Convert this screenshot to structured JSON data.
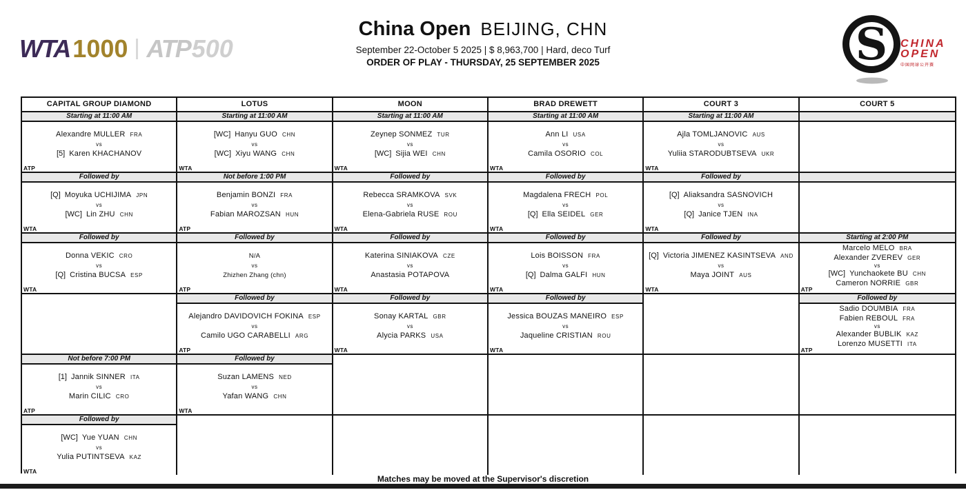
{
  "labels": {
    "vs": "vs"
  },
  "colors": {
    "wta_purple": "#3d2b57",
    "wta_gold": "#a2832c",
    "atp_gray": "#c6c6c6",
    "logo_red": "#c1272d",
    "band_gray": "#e8e8e8",
    "border_black": "#111111"
  },
  "header": {
    "wta_logo": {
      "word": "WTA",
      "number": "1000"
    },
    "atp_logo": {
      "word": "ATP",
      "number": "500"
    },
    "title": "China Open",
    "city": "BEIJING, CHN",
    "subtitle": "September 22-October 5 2025  |  $ 8,963,700  |  Hard, deco Turf",
    "order_line": "ORDER OF PLAY - THURSDAY, 25 SEPTEMBER 2025",
    "logo": {
      "line1": "CHINA",
      "line2": "OPEN",
      "chinese": "中国网球公开赛"
    }
  },
  "footer": {
    "note": "Matches may be moved at the Supervisor's discretion"
  },
  "schedule": {
    "courts": [
      {
        "name": "CAPITAL GROUP DIAMOND",
        "slots": [
          {
            "band": "Starting at 11:00 AM",
            "match": {
              "tour": "ATP",
              "rows": [
                {
                  "name": "Alexandre MULLER",
                  "cc": "FRA"
                },
                {
                  "vs": true
                },
                {
                  "pre": "[5]",
                  "name": "Karen KHACHANOV"
                }
              ]
            }
          },
          {
            "band": "Followed by",
            "match": {
              "tour": "WTA",
              "rows": [
                {
                  "pre": "[Q]",
                  "name": "Moyuka UCHIJIMA",
                  "cc": "JPN"
                },
                {
                  "vs": true
                },
                {
                  "pre": "[WC]",
                  "name": "Lin ZHU",
                  "cc": "CHN"
                }
              ]
            }
          },
          {
            "band": "Followed by",
            "match": {
              "tour": "WTA",
              "rows": [
                {
                  "name": "Donna VEKIC",
                  "cc": "CRO"
                },
                {
                  "vs": true
                },
                {
                  "pre": "[Q]",
                  "name": "Cristina BUCSA",
                  "cc": "ESP"
                }
              ]
            }
          },
          {
            "band": null,
            "match": null
          },
          {
            "band": "Not before 7:00 PM",
            "match": {
              "tour": "ATP",
              "rows": [
                {
                  "pre": "[1]",
                  "name": "Jannik SINNER",
                  "cc": "ITA"
                },
                {
                  "vs": true
                },
                {
                  "name": "Marin CILIC",
                  "cc": "CRO"
                }
              ]
            }
          },
          {
            "band": "Followed by",
            "match": {
              "tour": "WTA",
              "rows": [
                {
                  "pre": "[WC]",
                  "name": "Yue YUAN",
                  "cc": "CHN"
                },
                {
                  "vs": true
                },
                {
                  "name": "Yulia PUTINTSEVA",
                  "cc": "KAZ"
                }
              ]
            }
          }
        ]
      },
      {
        "name": "LOTUS",
        "slots": [
          {
            "band": "Starting at 11:00 AM",
            "match": {
              "tour": "WTA",
              "rows": [
                {
                  "pre": "[WC]",
                  "name": "Hanyu GUO",
                  "cc": "CHN"
                },
                {
                  "vs": true
                },
                {
                  "pre": "[WC]",
                  "name": "Xiyu WANG",
                  "cc": "CHN"
                }
              ]
            }
          },
          {
            "band": "Not before 1:00 PM",
            "match": {
              "tour": "ATP",
              "rows": [
                {
                  "name": "Benjamin BONZI",
                  "cc": "FRA"
                },
                {
                  "vs": true
                },
                {
                  "name": "Fabian MAROZSAN",
                  "cc": "HUN"
                }
              ]
            }
          },
          {
            "band": "Followed by",
            "match": {
              "tour": "ATP",
              "style": "plain",
              "rows": [
                {
                  "name": "N/A"
                },
                {
                  "vs": true
                },
                {
                  "name": "Zhizhen Zhang (chn)"
                }
              ]
            }
          },
          {
            "band": "Followed by",
            "match": {
              "tour": "ATP",
              "rows": [
                {
                  "name": "Alejandro DAVIDOVICH FOKINA",
                  "cc": "ESP"
                },
                {
                  "vs": true
                },
                {
                  "name": "Camilo UGO CARABELLI",
                  "cc": "ARG"
                }
              ]
            }
          },
          {
            "band": "Followed by",
            "match": {
              "tour": "WTA",
              "rows": [
                {
                  "name": "Suzan LAMENS",
                  "cc": "NED"
                },
                {
                  "vs": true
                },
                {
                  "name": "Yafan WANG",
                  "cc": "CHN"
                }
              ]
            }
          },
          {
            "band": null,
            "match": null
          }
        ]
      },
      {
        "name": "MOON",
        "slots": [
          {
            "band": "Starting at 11:00 AM",
            "match": {
              "tour": "WTA",
              "rows": [
                {
                  "name": "Zeynep SONMEZ",
                  "cc": "TUR"
                },
                {
                  "vs": true
                },
                {
                  "pre": "[WC]",
                  "name": "Sijia WEI",
                  "cc": "CHN"
                }
              ]
            }
          },
          {
            "band": "Followed by",
            "match": {
              "tour": "WTA",
              "rows": [
                {
                  "name": "Rebecca SRAMKOVA",
                  "cc": "SVK"
                },
                {
                  "vs": true
                },
                {
                  "name": "Elena-Gabriela RUSE",
                  "cc": "ROU"
                }
              ]
            }
          },
          {
            "band": "Followed by",
            "match": {
              "tour": "WTA",
              "rows": [
                {
                  "name": "Katerina SINIAKOVA",
                  "cc": "CZE"
                },
                {
                  "vs": true
                },
                {
                  "name": "Anastasia POTAPOVA"
                }
              ]
            }
          },
          {
            "band": "Followed by",
            "match": {
              "tour": "WTA",
              "rows": [
                {
                  "name": "Sonay KARTAL",
                  "cc": "GBR"
                },
                {
                  "vs": true
                },
                {
                  "name": "Alycia PARKS",
                  "cc": "USA"
                }
              ]
            }
          },
          {
            "band": null,
            "match": null
          },
          {
            "band": null,
            "match": null
          }
        ]
      },
      {
        "name": "BRAD DREWETT",
        "slots": [
          {
            "band": "Starting at 11:00 AM",
            "match": {
              "tour": "WTA",
              "rows": [
                {
                  "name": "Ann LI",
                  "cc": "USA"
                },
                {
                  "vs": true
                },
                {
                  "name": "Camila OSORIO",
                  "cc": "COL"
                }
              ]
            }
          },
          {
            "band": "Followed by",
            "match": {
              "tour": "WTA",
              "rows": [
                {
                  "name": "Magdalena FRECH",
                  "cc": "POL"
                },
                {
                  "vs": true
                },
                {
                  "pre": "[Q]",
                  "name": "Ella SEIDEL",
                  "cc": "GER"
                }
              ]
            }
          },
          {
            "band": "Followed by",
            "match": {
              "tour": "WTA",
              "rows": [
                {
                  "name": "Lois BOISSON",
                  "cc": "FRA"
                },
                {
                  "vs": true
                },
                {
                  "pre": "[Q]",
                  "name": "Dalma GALFI",
                  "cc": "HUN"
                }
              ]
            }
          },
          {
            "band": "Followed by",
            "match": {
              "tour": "WTA",
              "rows": [
                {
                  "name": "Jessica BOUZAS MANEIRO",
                  "cc": "ESP"
                },
                {
                  "vs": true
                },
                {
                  "name": "Jaqueline CRISTIAN",
                  "cc": "ROU"
                }
              ]
            }
          },
          {
            "band": null,
            "match": null
          },
          {
            "band": null,
            "match": null
          }
        ]
      },
      {
        "name": "COURT 3",
        "slots": [
          {
            "band": "Starting at 11:00 AM",
            "match": {
              "tour": "WTA",
              "rows": [
                {
                  "name": "Ajla TOMLJANOVIC",
                  "cc": "AUS"
                },
                {
                  "vs": true
                },
                {
                  "name": "Yuliia STARODUBTSEVA",
                  "cc": "UKR"
                }
              ]
            }
          },
          {
            "band": "Followed by",
            "match": {
              "tour": "WTA",
              "rows": [
                {
                  "pre": "[Q]",
                  "name": "Aliaksandra SASNOVICH"
                },
                {
                  "vs": true
                },
                {
                  "pre": "[Q]",
                  "name": "Janice TJEN",
                  "cc": "INA"
                }
              ]
            }
          },
          {
            "band": "Followed by",
            "match": {
              "tour": "WTA",
              "rows": [
                {
                  "pre": "[Q]",
                  "name": "Victoria JIMENEZ KASINTSEVA",
                  "cc": "AND"
                },
                {
                  "vs": true
                },
                {
                  "name": "Maya JOINT",
                  "cc": "AUS"
                }
              ]
            }
          },
          {
            "band": null,
            "match": null
          },
          {
            "band": null,
            "match": null
          },
          {
            "band": null,
            "match": null
          }
        ]
      },
      {
        "name": "COURT 5",
        "slots": [
          {
            "band": "",
            "match": {
              "tour": null,
              "rows": []
            }
          },
          {
            "band": "",
            "match": {
              "tour": null,
              "rows": []
            }
          },
          {
            "band": "Starting at 2:00 PM",
            "match": {
              "tour": "ATP",
              "rows": [
                {
                  "name": "Marcelo MELO",
                  "cc": "BRA"
                },
                {
                  "name": "Alexander ZVEREV",
                  "cc": "GER"
                },
                {
                  "vs": true
                },
                {
                  "pre": "[WC]",
                  "name": "Yunchaokete BU",
                  "cc": "CHN"
                },
                {
                  "name": "Cameron NORRIE",
                  "cc": "GBR"
                }
              ]
            }
          },
          {
            "band": "Followed by",
            "match": {
              "tour": "ATP",
              "rows": [
                {
                  "name": "Sadio DOUMBIA",
                  "cc": "FRA"
                },
                {
                  "name": "Fabien REBOUL",
                  "cc": "FRA"
                },
                {
                  "vs": true
                },
                {
                  "name": "Alexander BUBLIK",
                  "cc": "KAZ"
                },
                {
                  "name": "Lorenzo MUSETTI",
                  "cc": "ITA"
                }
              ]
            }
          },
          {
            "band": null,
            "match": null
          },
          {
            "band": null,
            "match": null
          }
        ]
      }
    ]
  }
}
